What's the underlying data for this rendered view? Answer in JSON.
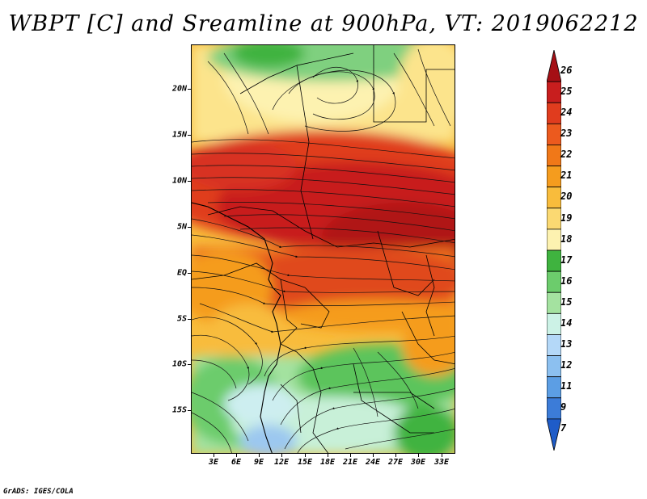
{
  "title": "WBPT [C] and Sreamline at 900hPa, VT: 2019062212",
  "credit": "GrADS: IGES/COLA",
  "map": {
    "lat_labels": [
      "20N",
      "15N",
      "10N",
      "5N",
      "EQ",
      "5S",
      "10S",
      "15S"
    ],
    "lon_labels": [
      "3E",
      "6E",
      "9E",
      "12E",
      "15E",
      "18E",
      "21E",
      "24E",
      "27E",
      "30E",
      "33E"
    ]
  },
  "colorbar": {
    "labels": [
      "26",
      "25",
      "24",
      "23",
      "22",
      "21",
      "20",
      "19",
      "18",
      "17",
      "16",
      "15",
      "14",
      "13",
      "12",
      "11",
      "9",
      "7"
    ],
    "colors": [
      "#a50f15",
      "#c81e1e",
      "#e03c1e",
      "#ec5a1e",
      "#f07818",
      "#f59c1e",
      "#f8bc3c",
      "#fbd972",
      "#fdf2b0",
      "#3fb33f",
      "#6ccc6c",
      "#a4e2a0",
      "#ccf2e6",
      "#b4d8f8",
      "#8cc0f0",
      "#5c9ee4",
      "#3c7cd8",
      "#1f5cc8"
    ]
  },
  "colors": {
    "hot": "#c0281b",
    "warm": "#ec6e1e",
    "mild": "#f8bc3c",
    "pale": "#fce48c",
    "green": "#5cc45c",
    "light_green": "#a4e2a0",
    "cool": "#cdeef0",
    "blue": "#9cc8f0"
  }
}
